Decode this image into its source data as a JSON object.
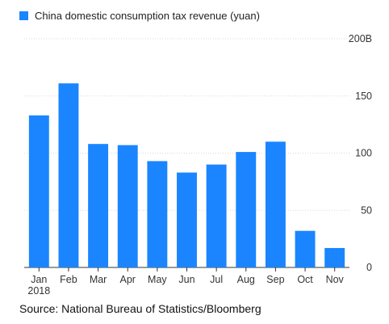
{
  "chart_data": {
    "type": "bar",
    "categories": [
      "Jan\n2018",
      "Feb",
      "Mar",
      "Apr",
      "May",
      "Jun",
      "Jul",
      "Aug",
      "Sep",
      "Oct",
      "Nov"
    ],
    "series": [
      {
        "name": "China domestic consumption tax revenue (yuan)",
        "values": [
          133,
          161,
          108,
          107,
          93,
          83,
          90,
          101,
          110,
          32,
          17
        ],
        "color": "#1a85ff"
      }
    ],
    "yticks": [
      {
        "value": 0,
        "label": "0"
      },
      {
        "value": 50,
        "label": "50"
      },
      {
        "value": 100,
        "label": "100"
      },
      {
        "value": 150,
        "label": "150"
      },
      {
        "value": 200,
        "label": "200B"
      }
    ],
    "ylim": [
      0,
      200
    ],
    "grid": true,
    "legend_position": "top-left",
    "title": "",
    "xlabel": "",
    "ylabel": ""
  },
  "source": "Source: National Bureau of Statistics/Bloomberg"
}
